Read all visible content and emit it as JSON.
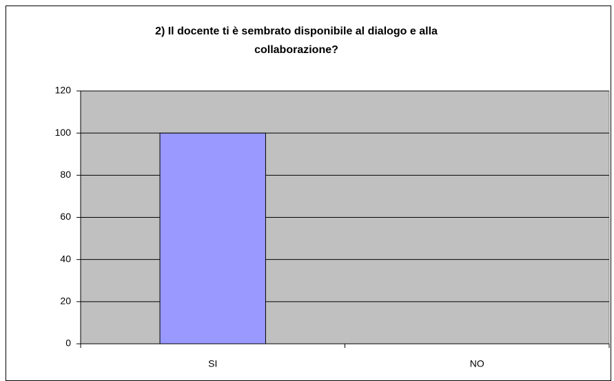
{
  "chart_data": {
    "type": "bar",
    "title": "2) Il docente ti è sembrato disponibile al dialogo e alla\ncollaborazione?",
    "categories": [
      "SI",
      "NO"
    ],
    "values": [
      100,
      0
    ],
    "color": "#9999ff",
    "ylim": [
      0,
      120
    ],
    "yticks": [
      0,
      20,
      40,
      60,
      80,
      100,
      120
    ],
    "grid": true
  }
}
